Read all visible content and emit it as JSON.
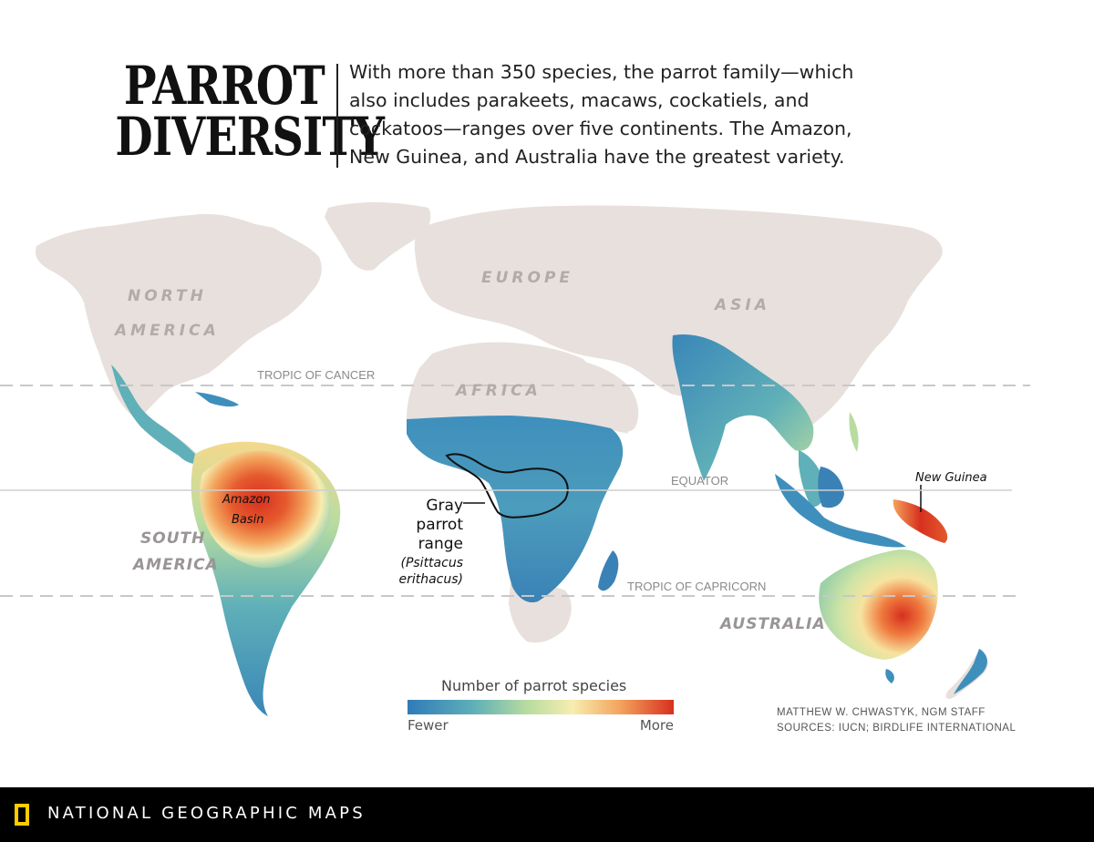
{
  "title": {
    "line1": "PARROT",
    "line2": "DIVERSITY"
  },
  "intro": "With more than 350 species, the parrot family—which also includes parakeets, macaws, cockatiels, and cockatoos—ranges over five continents. The Amazon, New Guinea, and Australia have the greatest variety.",
  "map": {
    "continents": {
      "north_america_1": "NORTH",
      "north_america_2": "AMERICA",
      "europe": "EUROPE",
      "asia": "ASIA",
      "africa": "AFRICA",
      "south_america_1": "SOUTH",
      "south_america_2": "AMERICA",
      "australia": "AUSTRALIA"
    },
    "reference_lines": {
      "tropic_cancer": "TROPIC OF CANCER",
      "equator": "EQUATOR",
      "tropic_capricorn": "TROPIC OF CAPRICORN"
    },
    "annotations": {
      "amazon_1": "Amazon",
      "amazon_2": "Basin",
      "new_guinea": "New Guinea",
      "gray_1": "Gray",
      "gray_2": "parrot",
      "gray_3": "range",
      "gray_4": "(Psittacus",
      "gray_5": "erithacus)"
    },
    "colors": {
      "land": "#e8e0dc",
      "fewer": "#3a7fb8",
      "mid": "#f7edb0",
      "more": "#d7301f"
    }
  },
  "legend": {
    "title": "Number of parrot species",
    "low": "Fewer",
    "high": "More"
  },
  "credits": {
    "author": "MATTHEW W. CHWASTYK, NGM STAFF",
    "sources": "SOURCES: IUCN; BIRDLIFE INTERNATIONAL"
  },
  "footer": {
    "brand": "NATIONAL GEOGRAPHIC MAPS"
  }
}
